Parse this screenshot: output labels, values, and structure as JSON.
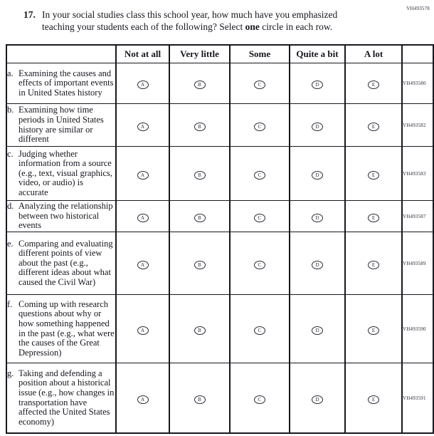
{
  "question": {
    "number": "17.",
    "code": "VH493578",
    "line1": "In your social studies class this school year, how much have you emphasized",
    "line2_before_bold": "teaching your students each of the following? Select ",
    "line2_bold": "one",
    "line2_after_bold": " circle in each row."
  },
  "table": {
    "columns": [
      "Not at all",
      "Very little",
      "Some",
      "Quite a bit",
      "A lot"
    ],
    "options": [
      "A",
      "B",
      "C",
      "D",
      "E"
    ],
    "rows": [
      {
        "letter": "a.",
        "text": "Examining the causes and effects of important events in United States history",
        "code": "VH493580"
      },
      {
        "letter": "b.",
        "text": "Examining how time periods in United States history are similar or different",
        "code": "VH493582"
      },
      {
        "letter": "c.",
        "text": "Judging whether information from a source (e.g., text, visual graphics, video, or audio) is accurate",
        "code": "VH493583"
      },
      {
        "letter": "d.",
        "text": "Analyzing the relationship between two historical events",
        "code": "VH493587"
      },
      {
        "letter": "e.",
        "text": "Comparing and evaluating different points of view about the past (e.g., different ideas about what caused the Civil War)",
        "code": "VH493589"
      },
      {
        "letter": "f.",
        "text": "Coming up with research questions about why or how something happened in the past (e.g., what were the causes of the Great Depression)",
        "code": "VH493590"
      },
      {
        "letter": "g.",
        "text": "Taking and defending a position about a historical issue (e.g., how changes in transportation have affected the United States economy)",
        "code": "VH493591"
      }
    ]
  }
}
